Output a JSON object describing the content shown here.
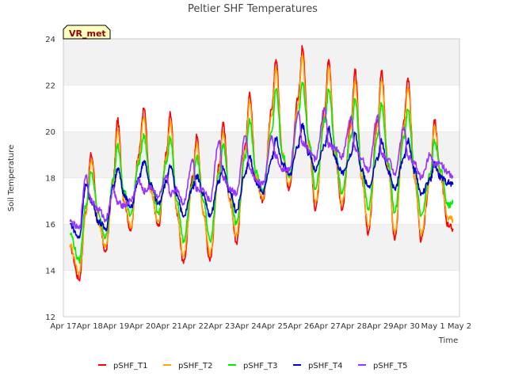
{
  "chart_data": {
    "type": "line",
    "title": "Peltier SHF Temperatures",
    "badge": "VR_met",
    "xlabel": "Time",
    "ylabel": "Soil Temperature",
    "ylim": [
      12,
      24
    ],
    "yticks": [
      12,
      14,
      16,
      18,
      20,
      22,
      24
    ],
    "xlim": [
      0,
      15
    ],
    "xtick_labels": [
      "Apr 17",
      "Apr 18",
      "Apr 19",
      "Apr 20",
      "Apr 21",
      "Apr 22",
      "Apr 23",
      "Apr 24",
      "Apr 25",
      "Apr 26",
      "Apr 27",
      "Apr 28",
      "Apr 29",
      "Apr 30",
      "May 1",
      "May 2"
    ],
    "xtick_values": [
      0,
      1,
      2,
      3,
      4,
      5,
      6,
      7,
      8,
      9,
      10,
      11,
      12,
      13,
      14,
      15
    ],
    "grid": "horizontal bands",
    "legend_position": "bottom",
    "series": [
      {
        "name": "pSHF_T1",
        "color": "#ff0000",
        "x": [
          0.25,
          0.6,
          0.85,
          1.05,
          1.35,
          1.6,
          1.9,
          2.05,
          2.3,
          2.55,
          2.85,
          3.05,
          3.3,
          3.6,
          3.9,
          4.05,
          4.3,
          4.55,
          4.9,
          5.05,
          5.3,
          5.55,
          5.9,
          6.05,
          6.3,
          6.55,
          6.9,
          7.05,
          7.3,
          7.55,
          7.9,
          8.05,
          8.3,
          8.55,
          8.9,
          9.05,
          9.3,
          9.55,
          9.9,
          10.05,
          10.3,
          10.55,
          10.9,
          11.05,
          11.3,
          11.55,
          11.9,
          12.05,
          12.3,
          12.55,
          12.9,
          13.05,
          13.3,
          13.55,
          13.9,
          14.05,
          14.3,
          14.55,
          14.75
        ],
        "y": [
          15.0,
          13.6,
          16.5,
          19.0,
          16.0,
          14.8,
          18.0,
          20.5,
          17.0,
          15.7,
          19.0,
          21.0,
          17.5,
          15.9,
          19.0,
          20.8,
          16.5,
          14.3,
          18.0,
          19.8,
          16.5,
          14.4,
          18.5,
          20.4,
          17.0,
          15.2,
          19.5,
          21.7,
          18.0,
          17.0,
          21.0,
          23.1,
          19.0,
          17.5,
          21.5,
          23.6,
          19.5,
          16.6,
          21.0,
          23.1,
          19.0,
          16.6,
          20.5,
          22.6,
          18.0,
          15.6,
          20.5,
          22.6,
          18.5,
          15.3,
          20.5,
          22.3,
          18.0,
          15.3,
          18.0,
          20.5,
          18.0,
          16.0,
          15.8
        ]
      },
      {
        "name": "pSHF_T2",
        "color": "#ffa500",
        "x": [
          0.25,
          0.6,
          0.85,
          1.05,
          1.35,
          1.6,
          1.9,
          2.05,
          2.3,
          2.55,
          2.85,
          3.05,
          3.3,
          3.6,
          3.9,
          4.05,
          4.3,
          4.55,
          4.9,
          5.05,
          5.3,
          5.55,
          5.9,
          6.05,
          6.3,
          6.55,
          6.9,
          7.05,
          7.3,
          7.55,
          7.9,
          8.05,
          8.3,
          8.55,
          8.9,
          9.05,
          9.3,
          9.55,
          9.9,
          10.05,
          10.3,
          10.55,
          10.9,
          11.05,
          11.3,
          11.55,
          11.9,
          12.05,
          12.3,
          12.55,
          12.9,
          13.05,
          13.3,
          13.55,
          13.9,
          14.05,
          14.3,
          14.55,
          14.75
        ],
        "y": [
          15.1,
          13.9,
          16.4,
          18.7,
          16.0,
          15.0,
          17.8,
          20.1,
          17.0,
          15.9,
          18.8,
          20.6,
          17.4,
          16.1,
          18.8,
          20.4,
          16.5,
          14.6,
          17.8,
          19.5,
          16.5,
          14.7,
          18.3,
          20.0,
          17.0,
          15.5,
          19.2,
          21.3,
          18.0,
          17.1,
          20.7,
          22.7,
          19.0,
          17.7,
          21.2,
          23.2,
          19.4,
          16.9,
          20.7,
          22.7,
          19.0,
          16.9,
          20.2,
          22.2,
          18.0,
          15.9,
          20.2,
          22.2,
          18.4,
          15.6,
          20.2,
          21.9,
          18.0,
          15.6,
          18.0,
          20.2,
          18.0,
          16.3,
          16.2
        ]
      },
      {
        "name": "pSHF_T3",
        "color": "#00ee00",
        "x": [
          0.25,
          0.6,
          0.85,
          1.05,
          1.35,
          1.6,
          1.9,
          2.05,
          2.3,
          2.55,
          2.85,
          3.05,
          3.3,
          3.6,
          3.9,
          4.05,
          4.3,
          4.55,
          4.9,
          5.05,
          5.3,
          5.55,
          5.9,
          6.05,
          6.3,
          6.55,
          6.9,
          7.05,
          7.3,
          7.55,
          7.9,
          8.05,
          8.3,
          8.55,
          8.9,
          9.05,
          9.3,
          9.55,
          9.9,
          10.05,
          10.3,
          10.55,
          10.9,
          11.05,
          11.3,
          11.55,
          11.9,
          12.05,
          12.3,
          12.55,
          12.9,
          13.05,
          13.3,
          13.55,
          13.9,
          14.05,
          14.3,
          14.55,
          14.75
        ],
        "y": [
          15.6,
          14.4,
          16.8,
          18.2,
          16.4,
          15.4,
          18.0,
          19.4,
          17.4,
          16.4,
          18.6,
          19.8,
          17.8,
          16.5,
          18.6,
          19.7,
          17.0,
          15.3,
          17.8,
          18.9,
          17.0,
          15.3,
          18.2,
          19.4,
          17.4,
          16.0,
          18.9,
          20.5,
          18.2,
          17.4,
          20.0,
          21.8,
          19.0,
          18.0,
          20.8,
          22.1,
          19.6,
          17.5,
          20.5,
          21.8,
          19.2,
          17.3,
          19.8,
          21.4,
          18.3,
          16.7,
          19.8,
          21.2,
          18.6,
          16.5,
          19.8,
          20.9,
          18.3,
          16.4,
          18.2,
          19.6,
          18.3,
          16.8,
          16.9
        ]
      },
      {
        "name": "pSHF_T4",
        "color": "#0000cc",
        "x": [
          0.25,
          0.6,
          0.85,
          1.05,
          1.35,
          1.6,
          1.9,
          2.05,
          2.3,
          2.55,
          2.85,
          3.05,
          3.3,
          3.6,
          3.9,
          4.05,
          4.3,
          4.55,
          4.9,
          5.05,
          5.3,
          5.55,
          5.9,
          6.05,
          6.3,
          6.55,
          6.9,
          7.05,
          7.3,
          7.55,
          7.9,
          8.05,
          8.3,
          8.55,
          8.9,
          9.05,
          9.3,
          9.55,
          9.9,
          10.05,
          10.3,
          10.55,
          10.9,
          11.05,
          11.3,
          11.55,
          11.9,
          12.05,
          12.3,
          12.55,
          12.9,
          13.05,
          13.3,
          13.55,
          13.9,
          14.05,
          14.3,
          14.55,
          14.75
        ],
        "y": [
          16.0,
          15.4,
          17.7,
          17.0,
          16.1,
          15.8,
          17.6,
          18.4,
          17.3,
          16.7,
          17.9,
          18.7,
          17.7,
          16.9,
          17.8,
          18.5,
          17.3,
          16.3,
          17.6,
          18.1,
          17.3,
          16.3,
          17.9,
          18.4,
          17.4,
          16.6,
          18.2,
          18.9,
          17.8,
          17.3,
          18.8,
          19.7,
          18.6,
          18.1,
          19.4,
          20.3,
          19.0,
          18.3,
          19.4,
          20.1,
          18.8,
          18.2,
          19.0,
          19.9,
          18.3,
          17.6,
          18.8,
          19.6,
          18.3,
          17.5,
          18.9,
          19.6,
          18.3,
          17.3,
          17.9,
          18.6,
          18.0,
          17.8,
          17.7
        ]
      },
      {
        "name": "pSHF_T5",
        "color": "#9933ff",
        "x": [
          0.25,
          0.6,
          0.85,
          1.05,
          1.35,
          1.6,
          1.9,
          2.05,
          2.3,
          2.55,
          2.85,
          3.05,
          3.3,
          3.6,
          3.9,
          4.05,
          4.3,
          4.55,
          4.9,
          5.05,
          5.3,
          5.55,
          5.9,
          6.05,
          6.3,
          6.55,
          6.9,
          7.05,
          7.3,
          7.55,
          7.9,
          8.05,
          8.3,
          8.55,
          8.9,
          9.05,
          9.3,
          9.55,
          9.9,
          10.05,
          10.3,
          10.55,
          10.9,
          11.05,
          11.3,
          11.55,
          11.9,
          12.05,
          12.3,
          12.55,
          12.9,
          13.05,
          13.3,
          13.55,
          13.9,
          14.05,
          14.3,
          14.55,
          14.75
        ],
        "y": [
          16.1,
          15.8,
          18.1,
          17.0,
          16.6,
          16.2,
          17.5,
          16.9,
          16.8,
          17.0,
          17.9,
          17.4,
          17.6,
          17.2,
          18.0,
          17.3,
          17.5,
          16.9,
          18.8,
          17.5,
          17.5,
          17.0,
          19.6,
          18.0,
          17.5,
          17.3,
          19.8,
          18.4,
          17.9,
          17.7,
          19.8,
          18.9,
          18.4,
          18.3,
          20.8,
          19.5,
          19.2,
          18.8,
          21.0,
          19.4,
          19.3,
          18.9,
          20.6,
          19.2,
          18.8,
          18.3,
          20.7,
          19.0,
          18.8,
          18.2,
          20.2,
          18.9,
          18.6,
          18.0,
          19.0,
          18.6,
          18.6,
          18.2,
          18.0
        ]
      }
    ]
  }
}
